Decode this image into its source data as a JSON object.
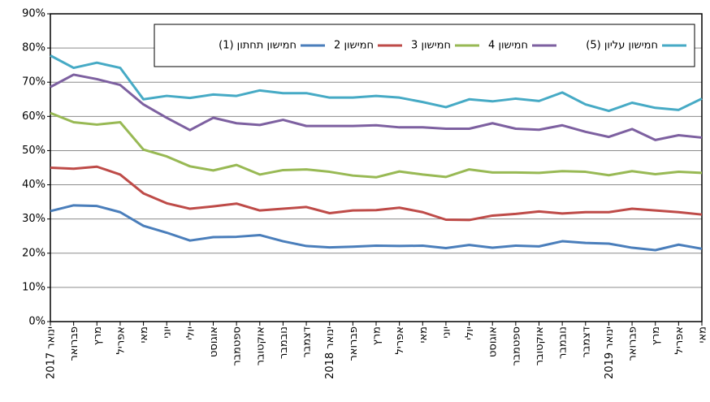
{
  "chart_data": {
    "type": "line",
    "categories": [
      "ינואר 2017",
      "פברואר",
      "מרץ",
      "אפריל",
      "מאי",
      "יוני",
      "יולי",
      "אוגוסט",
      "ספטמבר",
      "אוקטובר",
      "נובמבר",
      "דצמבר",
      "ינואר 2018",
      "פברואר",
      "מרץ",
      "אפריל",
      "מאי",
      "יוני",
      "יולי",
      "אוגוסט",
      "ספטמבר",
      "אוקטובר",
      "נובמבר",
      "דצמבר",
      "ינואר 2019",
      "פברואר",
      "מרץ",
      "אפריל",
      "מאי"
    ],
    "series": [
      {
        "name": "חמישון תחתון (1)",
        "color": "#4a7ebb",
        "values": [
          32.3,
          34,
          33.8,
          32,
          28,
          26,
          23.7,
          24.7,
          24.8,
          25.3,
          23.5,
          22.1,
          21.7,
          21.9,
          22.2,
          22.1,
          22.2,
          21.5,
          22.4,
          21.6,
          22.2,
          22,
          23.5,
          23,
          22.8,
          21.6,
          20.9,
          22.5,
          21.3
        ]
      },
      {
        "name": "חמישון 2",
        "color": "#be4b48",
        "values": [
          45,
          44.7,
          45.3,
          43,
          37.5,
          34.6,
          33,
          33.7,
          34.5,
          32.5,
          33,
          33.5,
          31.7,
          32.5,
          32.6,
          33.3,
          32,
          29.8,
          29.7,
          31,
          31.5,
          32.2,
          31.6,
          32,
          32,
          33,
          32.5,
          32,
          31.3
        ]
      },
      {
        "name": "חמישון 3",
        "color": "#98b954",
        "values": [
          61,
          58.3,
          57.6,
          58.3,
          50.3,
          48.3,
          45.4,
          44.2,
          45.8,
          43,
          44.3,
          44.5,
          43.8,
          42.7,
          42.2,
          43.9,
          43,
          42.3,
          44.5,
          43.6,
          43.6,
          43.5,
          44,
          43.8,
          42.8,
          44,
          43.1,
          43.8,
          43.5
        ]
      },
      {
        "name": "חמישון 4",
        "color": "#7d60a0",
        "values": [
          68.6,
          72.2,
          70.9,
          69.2,
          63.5,
          59.6,
          56,
          59.6,
          58,
          57.5,
          59,
          57.2,
          57.2,
          57.2,
          57.4,
          56.8,
          56.8,
          56.4,
          56.4,
          58,
          56.4,
          56.1,
          57.4,
          55.5,
          54,
          56.3,
          53.1,
          54.5,
          53.8
        ]
      },
      {
        "name": "חמישון עליון (5)",
        "color": "#46aac5",
        "values": [
          77.8,
          74.2,
          75.7,
          74.2,
          65,
          66,
          65.4,
          66.4,
          66,
          67.6,
          66.8,
          66.8,
          65.5,
          65.5,
          66,
          65.5,
          64.2,
          62.7,
          65,
          64.4,
          65.2,
          64.5,
          67,
          63.5,
          61.6,
          64,
          62.5,
          61.9,
          65.2
        ]
      }
    ],
    "ylim": [
      0,
      90
    ],
    "yticks": [
      {
        "value": 0,
        "label": "0%"
      },
      {
        "value": 10,
        "label": "10%"
      },
      {
        "value": 20,
        "label": "20%"
      },
      {
        "value": 30,
        "label": "30%"
      },
      {
        "value": 40,
        "label": "40%"
      },
      {
        "value": 50,
        "label": "50%"
      },
      {
        "value": 60,
        "label": "60%"
      },
      {
        "value": 70,
        "label": "70%"
      },
      {
        "value": 80,
        "label": "80%"
      },
      {
        "value": 90,
        "label": "90%"
      }
    ],
    "grid": true
  }
}
